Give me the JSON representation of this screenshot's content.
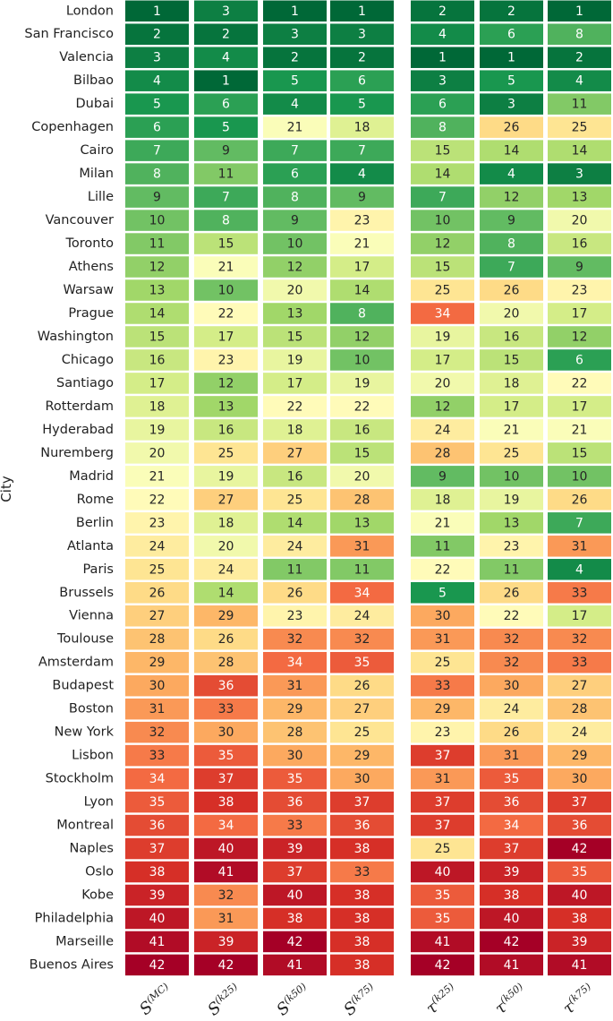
{
  "chart_data": {
    "type": "heatmap",
    "ylabel": "City",
    "columns": [
      {
        "base": "S",
        "sup": "(MC)"
      },
      {
        "base": "S",
        "sup": "(k25)"
      },
      {
        "base": "S",
        "sup": "(k50)"
      },
      {
        "base": "S",
        "sup": "(k75)"
      },
      {
        "base": "τ",
        "sup": "(k25)"
      },
      {
        "base": "τ",
        "sup": "(k50)"
      },
      {
        "base": "τ",
        "sup": "(k75)"
      }
    ],
    "rows": [
      "London",
      "San Francisco",
      "Valencia",
      "Bilbao",
      "Dubai",
      "Copenhagen",
      "Cairo",
      "Milan",
      "Lille",
      "Vancouver",
      "Toronto",
      "Athens",
      "Warsaw",
      "Prague",
      "Washington",
      "Chicago",
      "Santiago",
      "Rotterdam",
      "Hyderabad",
      "Nuremberg",
      "Madrid",
      "Rome",
      "Berlin",
      "Atlanta",
      "Paris",
      "Brussels",
      "Vienna",
      "Toulouse",
      "Amsterdam",
      "Budapest",
      "Boston",
      "New York",
      "Lisbon",
      "Stockholm",
      "Lyon",
      "Montreal",
      "Naples",
      "Oslo",
      "Kobe",
      "Philadelphia",
      "Marseille",
      "Buenos Aires"
    ],
    "values": [
      [
        1,
        3,
        1,
        1,
        2,
        2,
        1
      ],
      [
        2,
        2,
        3,
        3,
        4,
        6,
        8
      ],
      [
        3,
        4,
        2,
        2,
        1,
        1,
        2
      ],
      [
        4,
        1,
        5,
        6,
        3,
        5,
        4
      ],
      [
        5,
        6,
        4,
        5,
        6,
        3,
        11
      ],
      [
        6,
        5,
        21,
        18,
        8,
        26,
        25
      ],
      [
        7,
        9,
        7,
        7,
        15,
        14,
        14
      ],
      [
        8,
        11,
        6,
        4,
        14,
        4,
        3
      ],
      [
        9,
        7,
        8,
        9,
        7,
        12,
        13
      ],
      [
        10,
        8,
        9,
        23,
        10,
        9,
        20
      ],
      [
        11,
        15,
        10,
        21,
        12,
        8,
        16
      ],
      [
        12,
        21,
        12,
        17,
        15,
        7,
        9
      ],
      [
        13,
        10,
        20,
        14,
        25,
        26,
        23
      ],
      [
        14,
        22,
        13,
        8,
        34,
        20,
        17
      ],
      [
        15,
        17,
        15,
        12,
        19,
        16,
        12
      ],
      [
        16,
        23,
        19,
        10,
        17,
        15,
        6
      ],
      [
        17,
        12,
        17,
        19,
        20,
        18,
        22
      ],
      [
        18,
        13,
        22,
        22,
        12,
        17,
        17
      ],
      [
        19,
        16,
        18,
        16,
        24,
        21,
        21
      ],
      [
        20,
        25,
        27,
        15,
        28,
        25,
        15
      ],
      [
        21,
        19,
        16,
        20,
        9,
        10,
        10
      ],
      [
        22,
        27,
        25,
        28,
        18,
        19,
        26
      ],
      [
        23,
        18,
        14,
        13,
        21,
        13,
        7
      ],
      [
        24,
        20,
        24,
        31,
        11,
        23,
        31
      ],
      [
        25,
        24,
        11,
        11,
        22,
        11,
        4
      ],
      [
        26,
        14,
        26,
        34,
        5,
        26,
        33
      ],
      [
        27,
        29,
        23,
        24,
        30,
        22,
        17
      ],
      [
        28,
        26,
        32,
        32,
        31,
        32,
        32
      ],
      [
        29,
        28,
        34,
        35,
        25,
        32,
        33
      ],
      [
        30,
        36,
        31,
        26,
        33,
        30,
        27
      ],
      [
        31,
        33,
        29,
        27,
        29,
        24,
        28
      ],
      [
        32,
        30,
        28,
        25,
        23,
        26,
        24
      ],
      [
        33,
        35,
        30,
        29,
        37,
        31,
        29
      ],
      [
        34,
        37,
        35,
        30,
        31,
        35,
        30
      ],
      [
        35,
        38,
        36,
        37,
        37,
        36,
        37
      ],
      [
        36,
        34,
        33,
        36,
        37,
        34,
        36
      ],
      [
        37,
        40,
        39,
        38,
        25,
        37,
        42
      ],
      [
        38,
        41,
        37,
        33,
        40,
        39,
        35
      ],
      [
        39,
        32,
        40,
        38,
        35,
        38,
        40
      ],
      [
        40,
        31,
        38,
        38,
        35,
        40,
        38
      ],
      [
        41,
        39,
        42,
        38,
        41,
        42,
        39
      ],
      [
        42,
        42,
        41,
        38,
        42,
        41,
        41
      ]
    ],
    "value_range": [
      1,
      42
    ],
    "colormap": [
      "#006837",
      "#1a9850",
      "#66bd63",
      "#a6d96a",
      "#d9ef8b",
      "#ffffbf",
      "#fee08b",
      "#fdae61",
      "#f46d43",
      "#d73027",
      "#a50026"
    ]
  }
}
